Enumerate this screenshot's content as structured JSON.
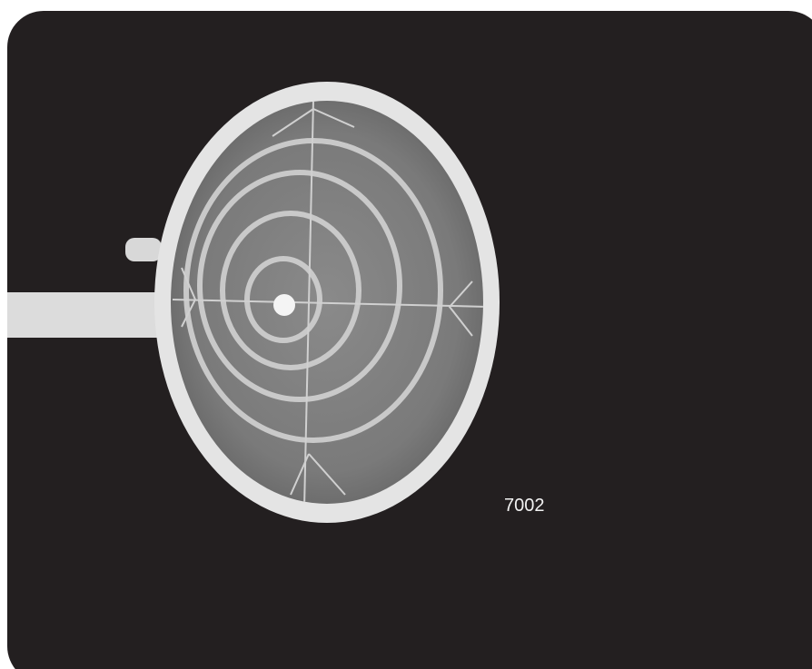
{
  "image": {
    "label": "7002"
  }
}
